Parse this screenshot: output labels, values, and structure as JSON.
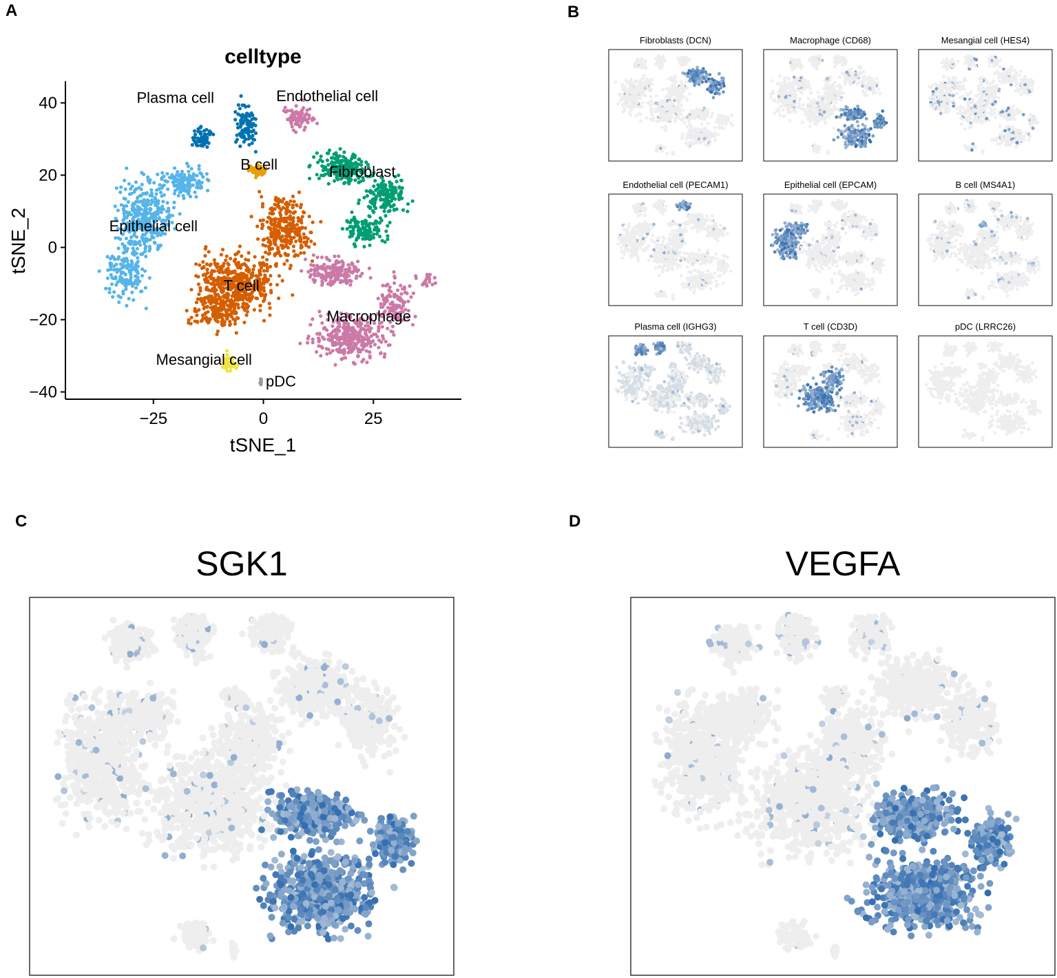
{
  "panels": {
    "a": "A",
    "b": "B",
    "c": "C",
    "d": "D"
  },
  "chart_data": [
    {
      "type": "scatter",
      "title": "celltype",
      "xlabel": "tSNE_1",
      "ylabel": "tSNE_2",
      "xlim": [
        -45,
        45
      ],
      "ylim": [
        -42,
        46
      ],
      "x_ticks": [
        -25,
        0,
        25
      ],
      "x_tick_labels": [
        "−25",
        "0",
        "25"
      ],
      "y_ticks": [
        -40,
        -20,
        0,
        20,
        40
      ],
      "y_tick_labels": [
        "−40",
        "−20",
        "0",
        "20",
        "40"
      ],
      "grid": false,
      "clusters": [
        {
          "name": "Plasma cell",
          "label": "Plasma cell",
          "color": "#0072B2",
          "label_x": -20,
          "label_y": 40
        },
        {
          "name": "Endothelial cell",
          "label": "Endothelial cell",
          "color": "#CC79A7",
          "label_x": 14.5,
          "label_y": 40.5
        },
        {
          "name": "B cell",
          "label": "B cell",
          "color": "#E69F00",
          "label_x": -1,
          "label_y": 21.5
        },
        {
          "name": "Fibroblast",
          "label": "Fibroblast",
          "color": "#009E73",
          "label_x": 22.5,
          "label_y": 19.5
        },
        {
          "name": "Epithelial cell",
          "label": "Epithelial cell",
          "color": "#56B4E9",
          "label_x": -25,
          "label_y": 4.5
        },
        {
          "name": "T cell",
          "label": "T cell",
          "color": "#D55E00",
          "label_x": -5,
          "label_y": -12
        },
        {
          "name": "Macrophage",
          "label": "Macrophage",
          "color": "#CC79A7",
          "label_x": 24,
          "label_y": -20.5
        },
        {
          "name": "Mesangial cell",
          "label": "Mesangial cell",
          "color": "#F0E442",
          "label_x": -13.5,
          "label_y": -32.5
        },
        {
          "name": "pDC",
          "label": "pDC",
          "color": "#999999",
          "label_x": 4,
          "label_y": -38.5
        }
      ]
    },
    {
      "type": "scatter",
      "subplots": [
        {
          "title": "Fibroblasts (DCN)",
          "hotspot": "fibroblast"
        },
        {
          "title": "Macrophage (CD68)",
          "hotspot": "macrophage"
        },
        {
          "title": "Mesangial cell (HES4)",
          "hotspot": "sparse"
        },
        {
          "title": "Endothelial cell (PECAM1)",
          "hotspot": "endothelial"
        },
        {
          "title": "Epithelial cell (EPCAM)",
          "hotspot": "epithelial"
        },
        {
          "title": "B cell (MS4A1)",
          "hotspot": "bcell"
        },
        {
          "title": "Plasma cell (IGHG3)",
          "hotspot": "plasma"
        },
        {
          "title": "T cell (CD3D)",
          "hotspot": "tcell"
        },
        {
          "title": "pDC (LRRC26)",
          "hotspot": "none"
        }
      ],
      "colors": {
        "low": "#EEEEEE",
        "high": "#1F5FA8"
      }
    },
    {
      "type": "scatter",
      "title": "SGK1",
      "hotspot": "macrophage",
      "colors": {
        "low": "#EEEEEE",
        "high": "#1F5FA8"
      }
    },
    {
      "type": "scatter",
      "title": "VEGFA",
      "hotspot": "macrophage",
      "colors": {
        "low": "#EEEEEE",
        "high": "#1F5FA8"
      }
    }
  ]
}
